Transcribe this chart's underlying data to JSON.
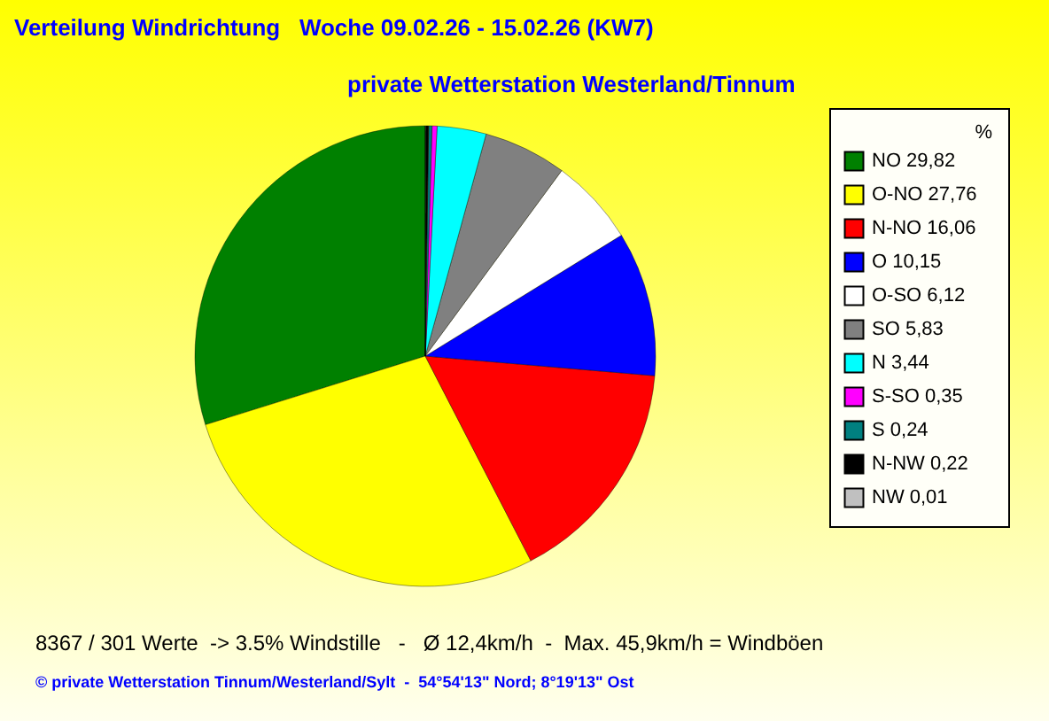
{
  "chart_data": {
    "type": "pie",
    "title": "Verteilung Windrichtung   Woche 09.02.26 - 15.02.26 (KW7)",
    "subtitle": "private Wetterstation Westerland/Tinnum",
    "legend_title": "%",
    "legend": "right",
    "categories": [
      "NO",
      "O-NO",
      "N-NO",
      "O",
      "O-SO",
      "SO",
      "N",
      "S-SO",
      "S",
      "N-NW",
      "NW"
    ],
    "values": [
      29.82,
      27.76,
      16.06,
      10.15,
      6.12,
      5.83,
      3.44,
      0.35,
      0.24,
      0.22,
      0.01
    ],
    "value_labels": [
      "29,82",
      "27,76",
      "16,06",
      "10,15",
      "6,12",
      "5,83",
      "3,44",
      "0,35",
      "0,24",
      "0,22",
      "0,01"
    ],
    "colors": [
      "#008000",
      "#ffff00",
      "#ff0000",
      "#0000ff",
      "#ffffff",
      "#808080",
      "#00ffff",
      "#ff00ff",
      "#008080",
      "#000000",
      "#c0c0c0"
    ],
    "annotations": [
      "8367 / 301 Werte  -> 3.5% Windstille   -   Ø 12,4km/h  -  Max. 45,9km/h = Windböen",
      "© private Wetterstation Tinnum/Westerland/Sylt  -  54°54'13\" Nord; 8°19'13\" Ost"
    ]
  }
}
